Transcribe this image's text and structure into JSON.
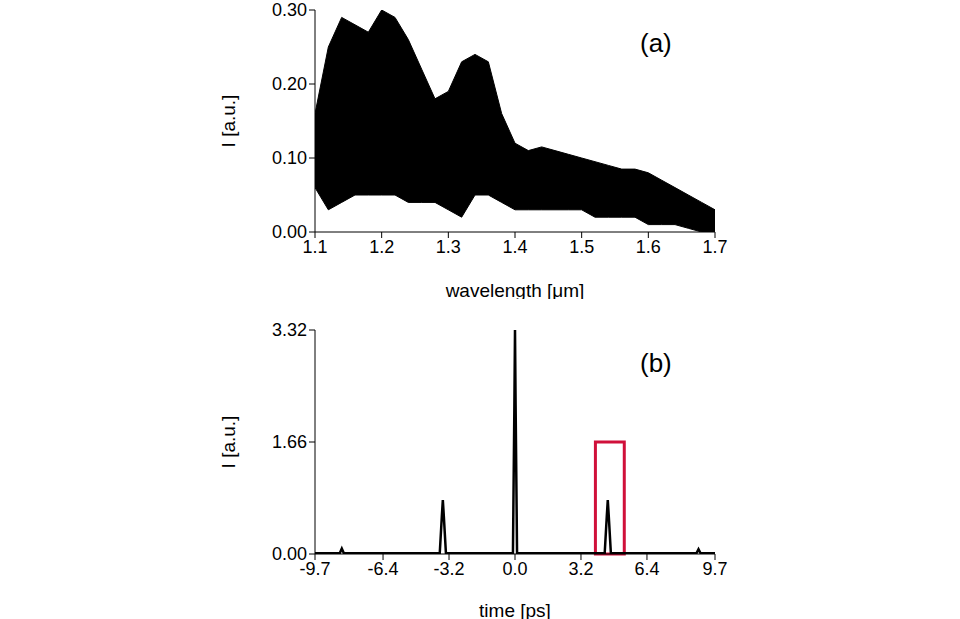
{
  "chart_data": [
    {
      "type": "area",
      "annotation": "(a)",
      "x_label": "wavelength [μm]",
      "y_label": "I [a.u.]",
      "color": "#000000",
      "x": [
        1.1,
        1.12,
        1.14,
        1.16,
        1.18,
        1.2,
        1.22,
        1.24,
        1.26,
        1.28,
        1.3,
        1.32,
        1.34,
        1.36,
        1.38,
        1.4,
        1.42,
        1.44,
        1.46,
        1.48,
        1.5,
        1.52,
        1.54,
        1.56,
        1.58,
        1.6,
        1.62,
        1.64,
        1.66,
        1.68,
        1.7
      ],
      "values_max": [
        0.16,
        0.25,
        0.29,
        0.28,
        0.27,
        0.3,
        0.29,
        0.26,
        0.22,
        0.18,
        0.19,
        0.23,
        0.24,
        0.23,
        0.16,
        0.12,
        0.11,
        0.115,
        0.11,
        0.105,
        0.1,
        0.095,
        0.09,
        0.085,
        0.085,
        0.08,
        0.07,
        0.06,
        0.05,
        0.04,
        0.03
      ],
      "values_min": [
        0.06,
        0.03,
        0.04,
        0.05,
        0.05,
        0.05,
        0.05,
        0.04,
        0.04,
        0.04,
        0.03,
        0.02,
        0.05,
        0.05,
        0.04,
        0.03,
        0.03,
        0.03,
        0.03,
        0.03,
        0.03,
        0.02,
        0.02,
        0.02,
        0.02,
        0.01,
        0.01,
        0.01,
        0.005,
        0.0,
        0.0
      ],
      "xlim": [
        1.1,
        1.7
      ],
      "xticks": [
        1.1,
        1.2,
        1.3,
        1.4,
        1.5,
        1.6,
        1.7
      ],
      "ylim": [
        0,
        0.3
      ],
      "yticks": [
        {
          "value": 0,
          "label": "0.00"
        },
        {
          "value": 0.1,
          "label": "0.10"
        },
        {
          "value": 0.2,
          "label": "0.20"
        },
        {
          "value": 0.3,
          "label": "0.30"
        }
      ]
    },
    {
      "type": "line",
      "annotation": "(b)",
      "x_label": "time [ps]",
      "y_label": "I [a.u.]",
      "color": "#000000",
      "x": [
        -9.7,
        -8.5,
        -8.4,
        -8.3,
        -3.65,
        -3.55,
        -3.5,
        -3.45,
        -3.35,
        -0.1,
        -0.03,
        0,
        0.03,
        0.1,
        4.35,
        4.45,
        4.5,
        4.55,
        4.65,
        8.8,
        8.9,
        9.0,
        9.7
      ],
      "values": [
        0.01,
        0.01,
        0.08,
        0.01,
        0.01,
        0.55,
        0.8,
        0.55,
        0.01,
        0.01,
        2.2,
        3.32,
        2.2,
        0.01,
        0.01,
        0.55,
        0.8,
        0.55,
        0.01,
        0.01,
        0.07,
        0.01,
        0.01
      ],
      "xlim": [
        -9.7,
        9.7
      ],
      "xticks": [
        -9.7,
        -6.4,
        -3.2,
        {
          "value": 0,
          "label": "0.0"
        },
        3.2,
        6.4,
        9.7
      ],
      "ylim": [
        0,
        3.32
      ],
      "yticks": [
        {
          "value": 0,
          "label": "0.00"
        },
        1.66,
        3.32
      ],
      "gate": {
        "xlim": [
          3.9,
          5.3
        ],
        "height": 1.66,
        "color": "#d0103a"
      }
    }
  ]
}
